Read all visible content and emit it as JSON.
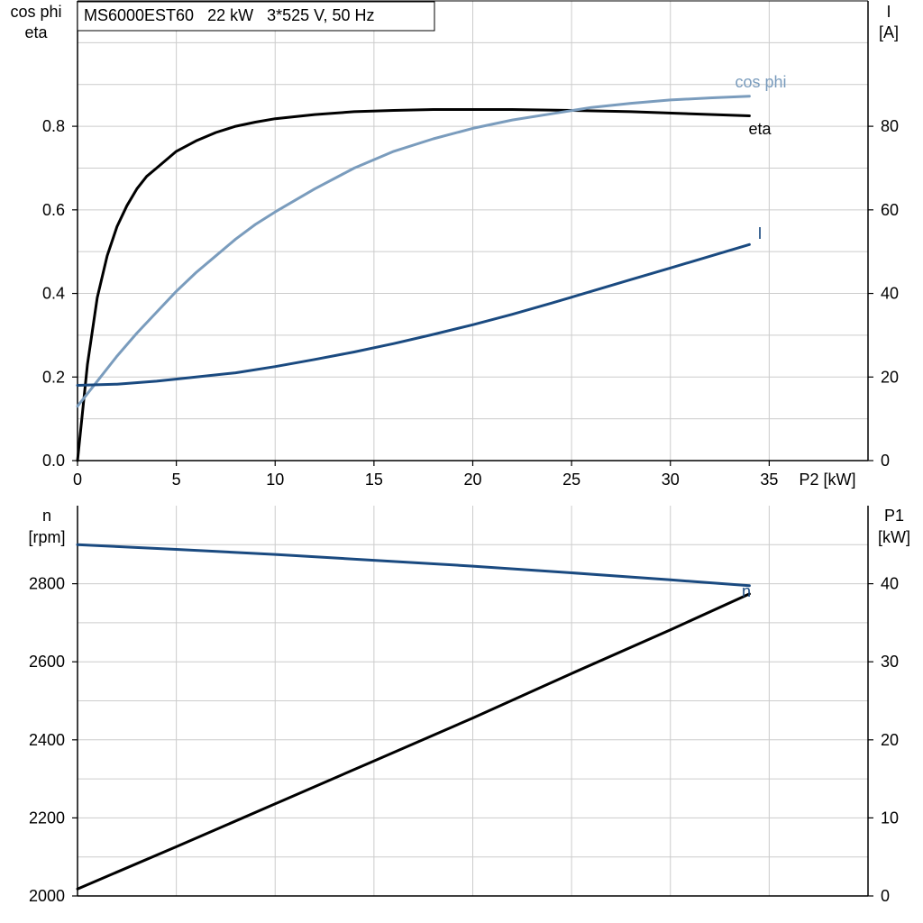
{
  "chart_data": [
    {
      "type": "line",
      "title": "MS6000EST60   22 kW   3*525 V, 50 Hz",
      "xlabel": "P2 [kW]",
      "xlim": [
        0,
        40
      ],
      "x_ticks": [
        "0",
        "5",
        "10",
        "15",
        "20",
        "25",
        "30",
        "35"
      ],
      "x_tick_values": [
        0,
        5,
        10,
        15,
        20,
        25,
        30,
        35
      ],
      "grid": true,
      "left_axis": {
        "label_lines": [
          "cos phi",
          "eta"
        ],
        "ylim": [
          0,
          1.1
        ],
        "ticks": [
          "0.0",
          "0.2",
          "0.4",
          "0.6",
          "0.8"
        ],
        "tick_values": [
          0,
          0.2,
          0.4,
          0.6,
          0.8
        ]
      },
      "right_axis": {
        "label_lines": [
          "I",
          "[A]"
        ],
        "ylim": [
          0,
          110
        ],
        "ticks": [
          "0",
          "20",
          "40",
          "60",
          "80"
        ],
        "tick_values": [
          0,
          20,
          40,
          60,
          80
        ]
      },
      "series": [
        {
          "name": "eta",
          "axis": "left",
          "color": "#000000",
          "x": [
            0,
            0.5,
            1,
            1.5,
            2,
            2.5,
            3,
            3.5,
            4,
            5,
            6,
            7,
            8,
            9,
            10,
            12,
            14,
            16,
            18,
            20,
            22,
            25,
            28,
            31,
            34
          ],
          "y": [
            0,
            0.23,
            0.39,
            0.49,
            0.56,
            0.61,
            0.65,
            0.68,
            0.7,
            0.74,
            0.765,
            0.785,
            0.8,
            0.81,
            0.818,
            0.828,
            0.835,
            0.838,
            0.84,
            0.84,
            0.84,
            0.838,
            0.835,
            0.83,
            0.825
          ]
        },
        {
          "name": "cos phi",
          "axis": "left",
          "color": "#7a9cbd",
          "x": [
            0,
            1,
            2,
            3,
            4,
            5,
            6,
            7,
            8,
            9,
            10,
            12,
            14,
            16,
            18,
            20,
            22,
            24,
            26,
            28,
            30,
            32,
            34
          ],
          "y": [
            0.13,
            0.19,
            0.25,
            0.305,
            0.355,
            0.405,
            0.45,
            0.49,
            0.53,
            0.565,
            0.595,
            0.65,
            0.7,
            0.74,
            0.77,
            0.795,
            0.815,
            0.83,
            0.845,
            0.855,
            0.863,
            0.868,
            0.872
          ]
        },
        {
          "name": "I",
          "axis": "right",
          "color": "#1a4a80",
          "x": [
            0,
            2,
            4,
            6,
            8,
            10,
            12,
            14,
            16,
            18,
            20,
            22,
            24,
            26,
            28,
            30,
            32,
            34
          ],
          "y": [
            18,
            18.3,
            19,
            20,
            21,
            22.5,
            24.2,
            26,
            28,
            30.2,
            32.5,
            35,
            37.7,
            40.5,
            43.3,
            46.1,
            48.9,
            51.7
          ]
        }
      ],
      "labels": [
        "cos phi",
        "eta",
        "I"
      ]
    },
    {
      "type": "line",
      "xlim": [
        0,
        40
      ],
      "grid": true,
      "left_axis": {
        "label_lines": [
          "n",
          "[rpm]"
        ],
        "ylim": [
          2000,
          3000
        ],
        "ticks": [
          "2000",
          "2200",
          "2400",
          "2600",
          "2800"
        ],
        "tick_values": [
          2000,
          2200,
          2400,
          2600,
          2800
        ]
      },
      "right_axis": {
        "label_lines": [
          "P1",
          "[kW]"
        ],
        "ylim": [
          0,
          50
        ],
        "ticks": [
          "0",
          "10",
          "20",
          "30",
          "40"
        ],
        "tick_values": [
          0,
          10,
          20,
          30,
          40
        ]
      },
      "series": [
        {
          "name": "n",
          "axis": "left",
          "color": "#1a4a80",
          "x": [
            0,
            5,
            10,
            15,
            20,
            25,
            30,
            34
          ],
          "y": [
            2900,
            2888,
            2875,
            2860,
            2845,
            2828,
            2810,
            2795
          ]
        },
        {
          "axis": "right",
          "color": "#000000",
          "x": [
            0,
            5,
            10,
            15,
            20,
            25,
            30,
            34
          ],
          "y": [
            0.9,
            6.3,
            11.8,
            17.3,
            22.8,
            28.5,
            34.1,
            38.7
          ]
        }
      ],
      "labels": [
        "n"
      ]
    }
  ]
}
